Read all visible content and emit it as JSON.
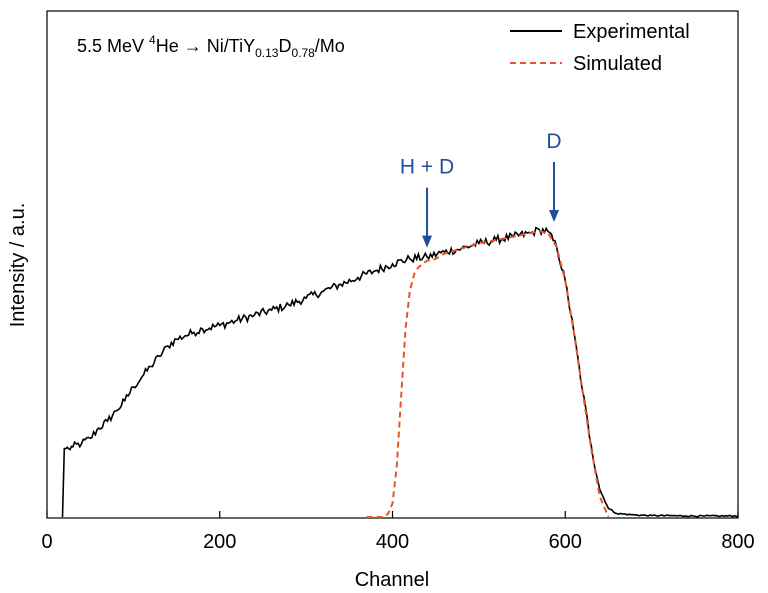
{
  "colors": {
    "experimental": "#000000",
    "simulated": "#e8552a",
    "annotation": "#1f4e9c"
  },
  "chart_data": {
    "type": "line",
    "title_parts": {
      "pre": "5.5 MeV ",
      "sup1": "4",
      "mid": "He → Ni/TiY",
      "sub1": "0.13",
      "mid2": "D",
      "sub2": "0.78",
      "post": "/Mo"
    },
    "xlabel": "Channel",
    "ylabel": "Intensity / a.u.",
    "xlim": [
      0,
      800
    ],
    "ylim": [
      0,
      1
    ],
    "xticks": [
      0,
      200,
      400,
      600,
      800
    ],
    "x_tick_labels": [
      "0",
      "200",
      "400",
      "600",
      "800"
    ],
    "grid": false,
    "legend_position": "top-right",
    "series": [
      {
        "name": "Experimental",
        "style": "solid",
        "x": [
          18,
          20,
          22,
          25,
          30,
          40,
          50,
          60,
          70,
          80,
          90,
          100,
          110,
          120,
          130,
          140,
          150,
          160,
          170,
          180,
          200,
          220,
          240,
          260,
          280,
          300,
          320,
          340,
          360,
          380,
          400,
          420,
          440,
          460,
          480,
          500,
          520,
          540,
          560,
          570,
          580,
          590,
          600,
          610,
          620,
          630,
          640,
          650,
          660,
          680,
          700,
          720,
          740,
          760,
          780,
          800
        ],
        "y": [
          0.0,
          0.2,
          0.2,
          0.2,
          0.205,
          0.215,
          0.23,
          0.26,
          0.28,
          0.31,
          0.34,
          0.38,
          0.41,
          0.44,
          0.47,
          0.5,
          0.52,
          0.53,
          0.54,
          0.55,
          0.56,
          0.575,
          0.59,
          0.605,
          0.62,
          0.64,
          0.66,
          0.68,
          0.7,
          0.72,
          0.74,
          0.755,
          0.76,
          0.775,
          0.785,
          0.8,
          0.81,
          0.82,
          0.83,
          0.84,
          0.835,
          0.79,
          0.69,
          0.54,
          0.37,
          0.21,
          0.08,
          0.025,
          0.01,
          0.006,
          0.004,
          0.004,
          0.003,
          0.003,
          0.003,
          0.003
        ]
      },
      {
        "name": "Simulated",
        "style": "dashed",
        "x": [
          370,
          390,
          395,
          400,
          405,
          410,
          415,
          420,
          425,
          430,
          435,
          440,
          445,
          450,
          460,
          480,
          500,
          520,
          540,
          560,
          570,
          580,
          590,
          600,
          610,
          620,
          630,
          640,
          650
        ],
        "y": [
          0.0,
          0.0,
          0.01,
          0.04,
          0.15,
          0.35,
          0.55,
          0.66,
          0.71,
          0.73,
          0.74,
          0.75,
          0.75,
          0.755,
          0.77,
          0.785,
          0.8,
          0.81,
          0.82,
          0.83,
          0.835,
          0.83,
          0.79,
          0.69,
          0.54,
          0.37,
          0.2,
          0.06,
          0.0
        ]
      }
    ],
    "annotations": [
      {
        "label": "H + D",
        "x": 440,
        "y": 0.77
      },
      {
        "label": "D",
        "x": 587,
        "y": 0.845
      }
    ]
  }
}
